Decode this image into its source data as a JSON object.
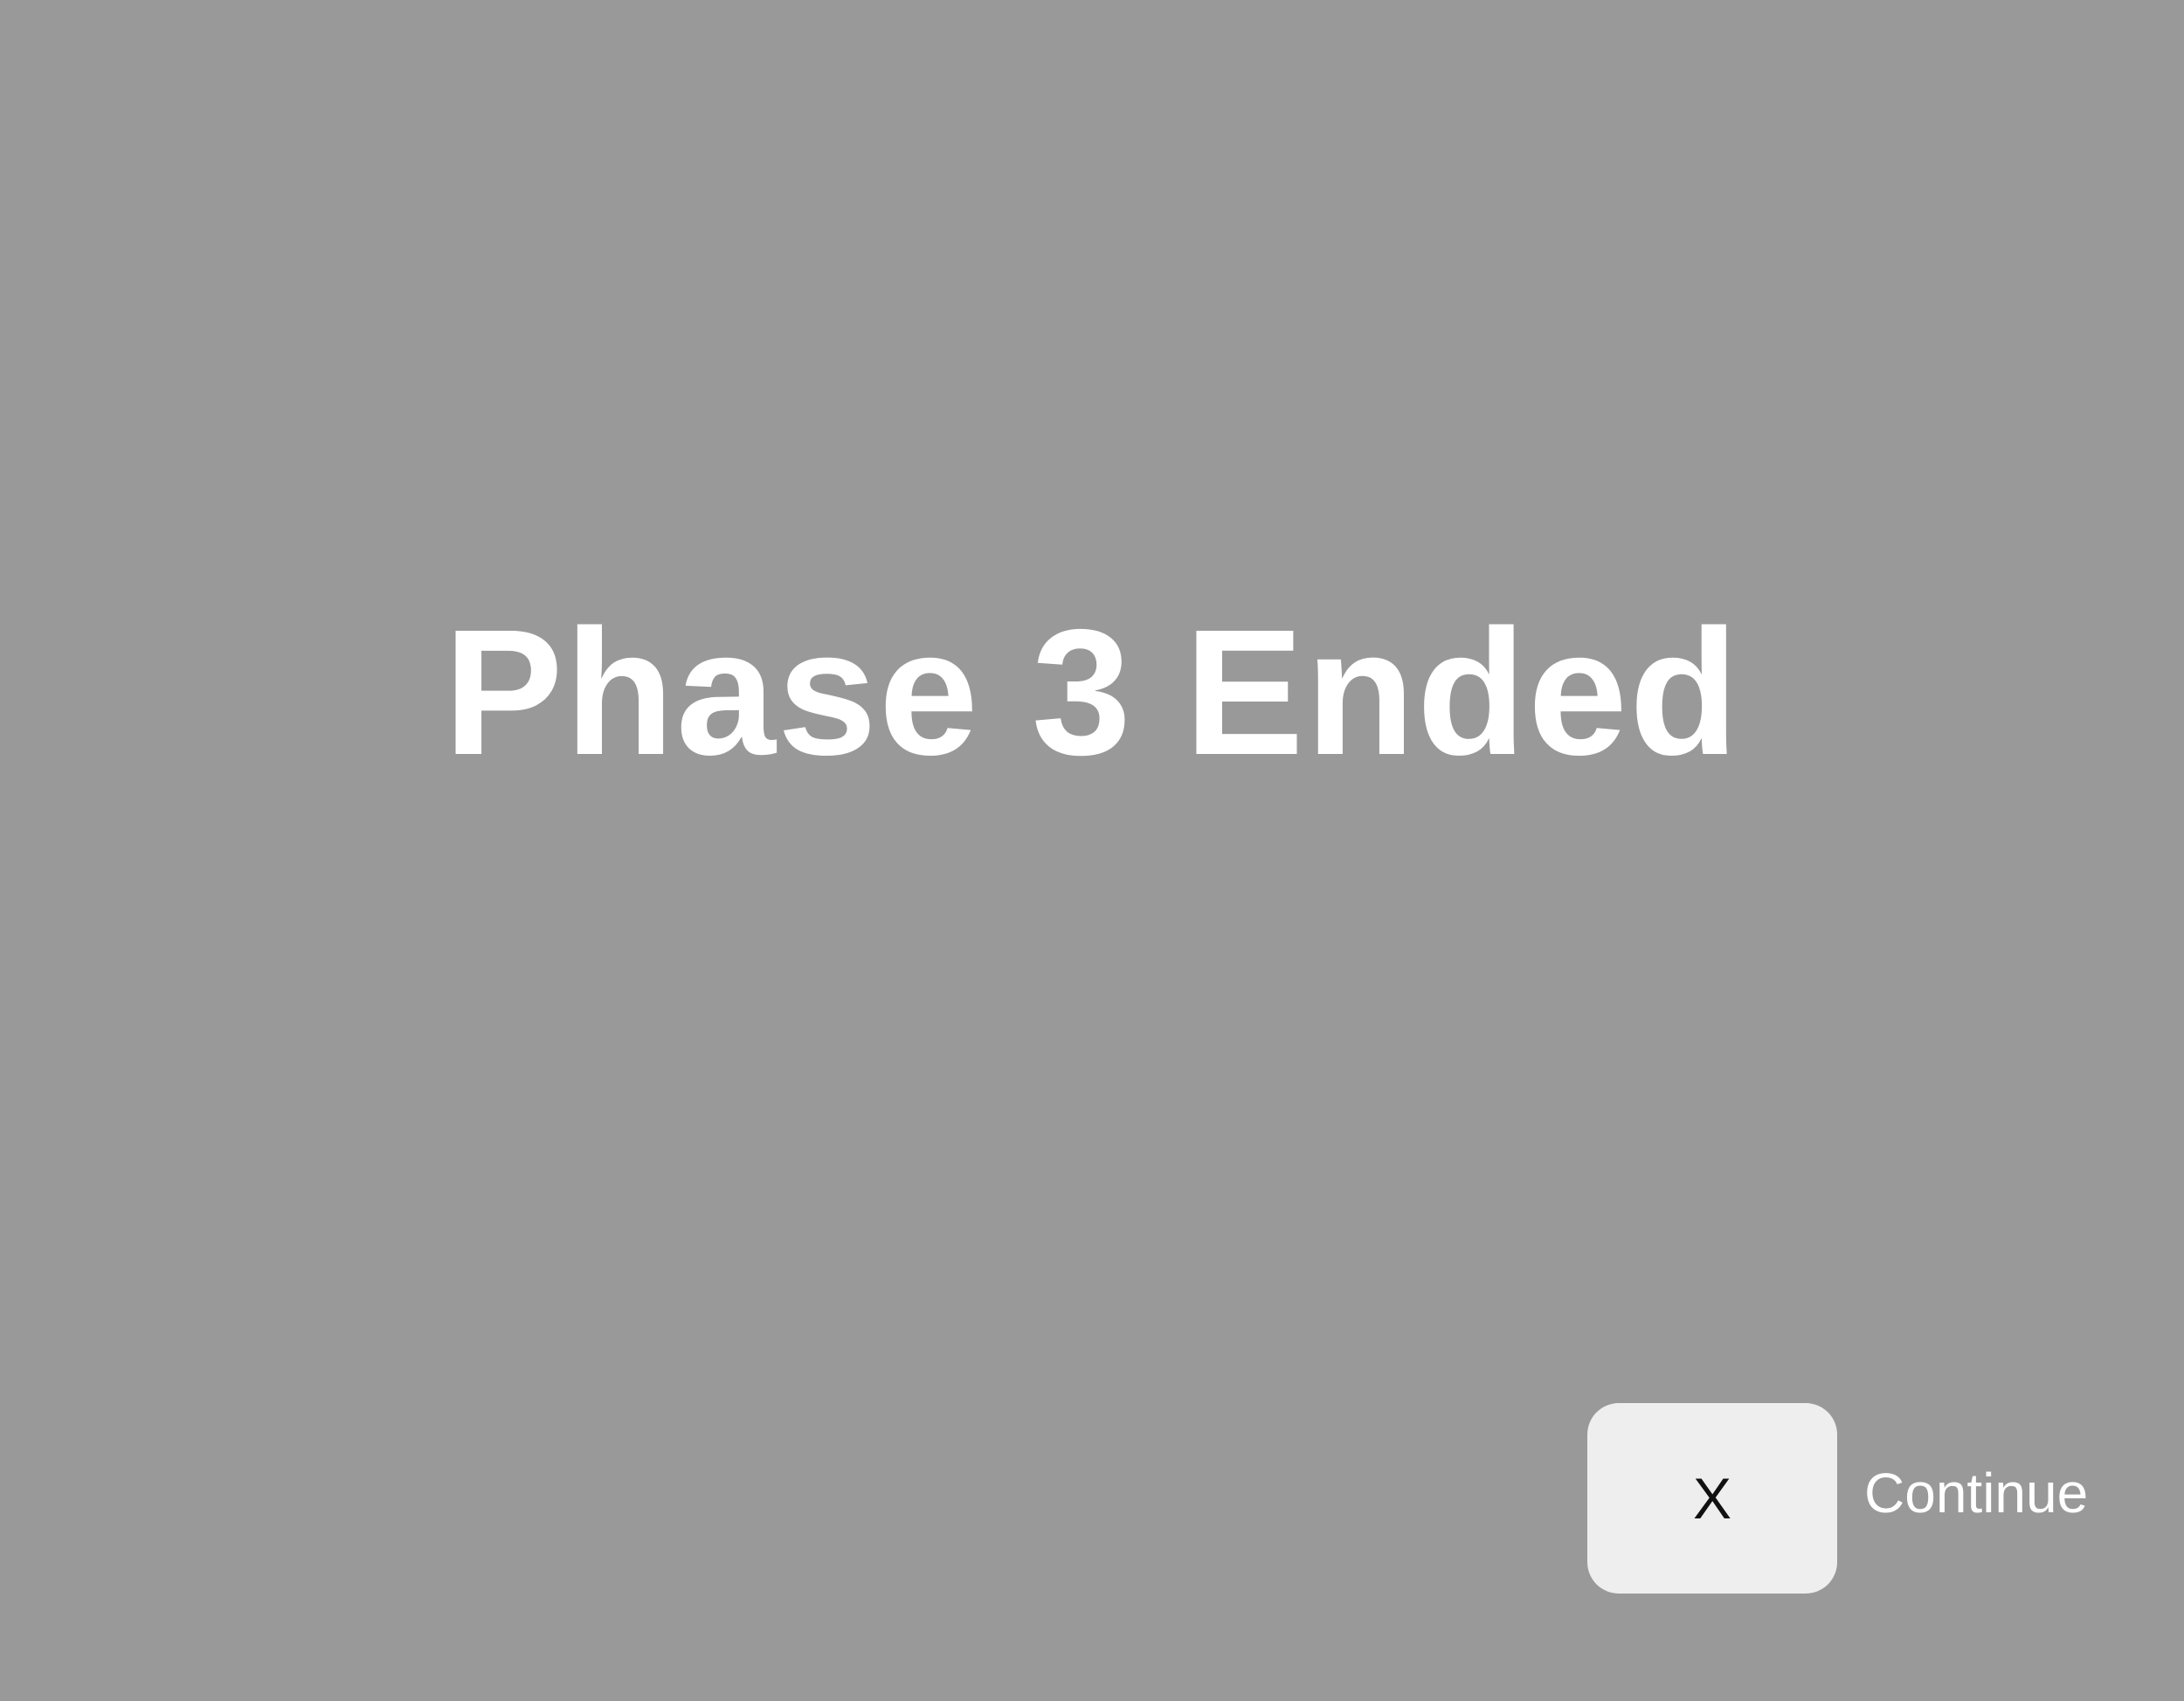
{
  "screen": {
    "background_color": "#999999",
    "title": "Phase 3 Ended",
    "title_color": "#ffffff"
  },
  "continue_control": {
    "key_label": "X",
    "key_background": "#eeeeee",
    "action_label": "Continue"
  }
}
